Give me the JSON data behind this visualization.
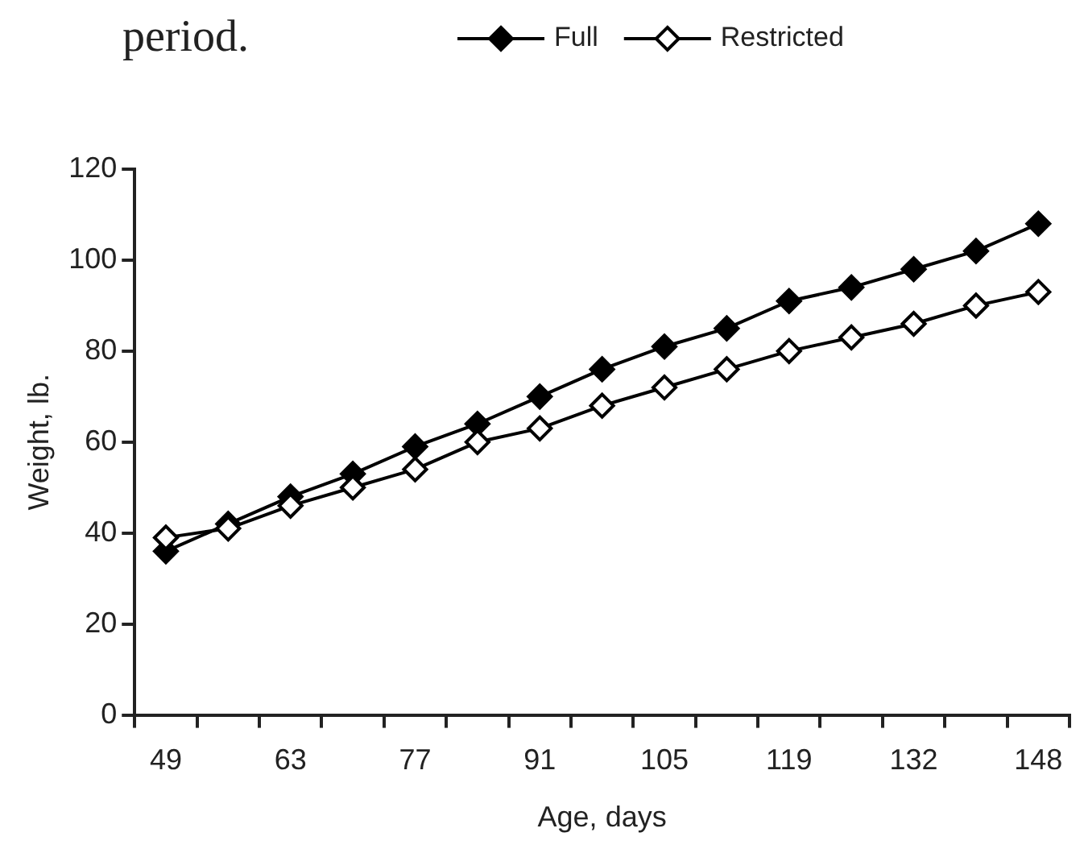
{
  "chart_data": {
    "type": "line",
    "xlabel": "Age, days",
    "ylabel": "Weight, lb.",
    "annotations": [
      "period."
    ],
    "categories": [
      "49",
      null,
      "63",
      null,
      "77",
      null,
      "91",
      null,
      "105",
      null,
      "119",
      null,
      "132",
      null,
      "148"
    ],
    "series": [
      {
        "name": "Full",
        "color": "#000000",
        "values": [
          36,
          42,
          48,
          53,
          59,
          64,
          70,
          76,
          81,
          85,
          91,
          94,
          98,
          102,
          108
        ]
      },
      {
        "name": "Restricted",
        "color": "#000000",
        "values": [
          39,
          41,
          46,
          50,
          54,
          60,
          63,
          68,
          72,
          76,
          80,
          83,
          86,
          90,
          93
        ]
      }
    ],
    "ylim": [
      0,
      120
    ],
    "yticks": [
      0,
      20,
      40,
      60,
      80,
      100,
      120
    ],
    "grid": false,
    "legend": "top",
    "marker": "diamond",
    "line_style": "solid"
  }
}
